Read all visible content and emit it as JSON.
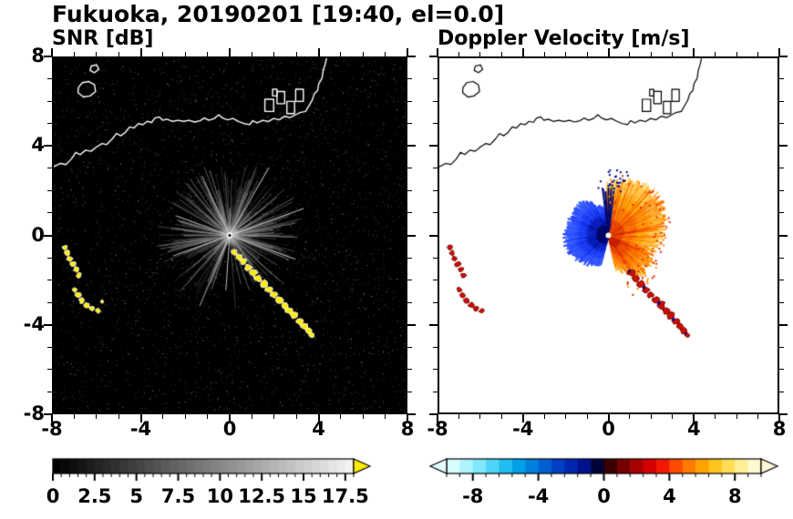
{
  "figure": {
    "title": "Fukuoka, 20190201 [19:40, el=0.0]"
  },
  "panels": [
    {
      "title": "SNR [dB]"
    },
    {
      "title": "Doppler Velocity [m/s]"
    }
  ],
  "axes": {
    "range": [
      -8,
      8
    ],
    "tick_values": [
      -8,
      -4,
      0,
      4,
      8
    ],
    "x_tick_labels": [
      "-8",
      "-4",
      "0",
      "4",
      "8"
    ],
    "y_tick_values": [
      8,
      4,
      0,
      -4,
      -8
    ],
    "y_tick_labels": [
      "8",
      "4",
      "0",
      "-4",
      "-8"
    ],
    "minor_step": 1
  },
  "colorbars": {
    "snr": {
      "labels": [
        "0",
        "2.5",
        "5",
        "7.5",
        "10",
        "12.5",
        "15",
        "17.5"
      ],
      "values": [
        0,
        2.5,
        5,
        7.5,
        10,
        12.5,
        15,
        17.5
      ],
      "range": [
        0,
        18
      ],
      "cells": 36,
      "minor_step": 0.5,
      "over_color": "#ffec00"
    },
    "vel": {
      "labels": [
        "-8",
        "-4",
        "0",
        "4",
        "8"
      ],
      "values": [
        -8,
        -4,
        0,
        4,
        8
      ],
      "range": [
        -9.6,
        9.6
      ],
      "minor_step": 0.8,
      "under_color": "#e2feff",
      "over_color": "#fffad8",
      "palette": [
        "#d8fdff",
        "#aef4ff",
        "#7fe8ff",
        "#4fd4f8",
        "#22bdf0",
        "#00a1e8",
        "#0080dd",
        "#005fd0",
        "#0040c4",
        "#0026b0",
        "#001190",
        "#000538",
        "#3a0000",
        "#750000",
        "#a80000",
        "#d40000",
        "#f01800",
        "#ff4a00",
        "#ff7a00",
        "#ffa200",
        "#ffc51e",
        "#ffdd55",
        "#ffef96",
        "#fff9cf"
      ]
    }
  },
  "chart_data": [
    {
      "type": "heatmap",
      "title": "SNR [dB]",
      "units": "dB",
      "xlim": [
        -8,
        8
      ],
      "ylim": [
        -8,
        8
      ],
      "xticks": [
        -8,
        -4,
        0,
        4,
        8
      ],
      "yticks": [
        -8,
        -4,
        0,
        4,
        8
      ],
      "background": "#000000",
      "colorbar": {
        "range": [
          0,
          18
        ],
        "label_values": [
          0,
          2.5,
          5,
          7.5,
          10,
          12.5,
          15,
          17.5
        ],
        "colormap": "black-to-white grayscale",
        "over_color": "#ffec00",
        "over_meaning": "SNR > 17.5 dB (strong clutter)"
      },
      "radar_site": [
        0,
        0
      ],
      "beam_field": {
        "description": "gray radial noise and clutter streaks radiating from the radar at the origin",
        "max_radius_km": 3.4,
        "gap_sector_deg": [
          252,
          288
        ]
      },
      "bright_rays_deg": [
        20,
        60,
        115,
        160,
        200,
        247,
        266,
        340
      ],
      "coastline": {
        "main": [
          [
            -8,
            3.1
          ],
          [
            -7.7,
            3.25
          ],
          [
            -7.45,
            3.2
          ],
          [
            -7.2,
            3.45
          ],
          [
            -7.0,
            3.75
          ],
          [
            -6.8,
            3.65
          ],
          [
            -6.55,
            3.85
          ],
          [
            -6.3,
            3.8
          ],
          [
            -6.05,
            4.0
          ],
          [
            -5.8,
            4.15
          ],
          [
            -5.6,
            4.1
          ],
          [
            -5.35,
            4.35
          ],
          [
            -5.15,
            4.6
          ],
          [
            -4.95,
            4.5
          ],
          [
            -4.75,
            4.65
          ],
          [
            -4.55,
            4.9
          ],
          [
            -4.35,
            4.85
          ],
          [
            -4.15,
            5.05
          ],
          [
            -3.95,
            5.0
          ],
          [
            -3.75,
            5.15
          ],
          [
            -3.55,
            5.1
          ],
          [
            -3.4,
            5.3
          ],
          [
            -3.2,
            5.35
          ],
          [
            -3.05,
            5.2
          ],
          [
            -2.85,
            5.25
          ],
          [
            -2.6,
            5.15
          ],
          [
            -2.35,
            5.2
          ],
          [
            -2.1,
            5.15
          ],
          [
            -1.85,
            5.2
          ],
          [
            -1.6,
            5.12
          ],
          [
            -1.35,
            5.18
          ],
          [
            -1.15,
            5.3
          ],
          [
            -0.95,
            5.2
          ],
          [
            -0.7,
            5.28
          ],
          [
            -0.5,
            5.45
          ],
          [
            -0.32,
            5.3
          ],
          [
            -0.1,
            5.22
          ],
          [
            0.15,
            5.28
          ],
          [
            0.4,
            5.15
          ],
          [
            0.65,
            5.05
          ],
          [
            0.9,
            5.0
          ],
          [
            1.05,
            5.18
          ],
          [
            1.25,
            5.08
          ],
          [
            1.5,
            5.2
          ],
          [
            1.75,
            5.14
          ],
          [
            2.0,
            5.28
          ],
          [
            2.25,
            5.22
          ],
          [
            2.5,
            5.38
          ],
          [
            2.75,
            5.32
          ],
          [
            3.0,
            5.45
          ],
          [
            3.2,
            5.55
          ],
          [
            3.45,
            5.6
          ],
          [
            3.6,
            5.85
          ],
          [
            3.75,
            6.1
          ],
          [
            3.85,
            6.4
          ],
          [
            4.0,
            6.55
          ],
          [
            4.05,
            6.85
          ],
          [
            4.2,
            7.1
          ],
          [
            4.25,
            7.45
          ],
          [
            4.35,
            7.75
          ],
          [
            4.4,
            8.0
          ]
        ],
        "islands": [
          [
            [
              -6.9,
              6.45
            ],
            [
              -6.65,
              6.25
            ],
            [
              -6.35,
              6.3
            ],
            [
              -6.1,
              6.5
            ],
            [
              -6.15,
              6.8
            ],
            [
              -6.4,
              6.95
            ],
            [
              -6.7,
              6.9
            ],
            [
              -6.88,
              6.68
            ]
          ],
          [
            [
              -6.35,
              7.45
            ],
            [
              -6.15,
              7.35
            ],
            [
              -5.95,
              7.5
            ],
            [
              -6.05,
              7.7
            ],
            [
              -6.3,
              7.65
            ]
          ]
        ],
        "port_rects": [
          [
            1.6,
            5.6,
            2.0,
            6.15
          ],
          [
            2.15,
            5.95,
            2.5,
            6.5
          ],
          [
            2.6,
            5.5,
            2.95,
            6.05
          ],
          [
            3.0,
            6.05,
            3.35,
            6.6
          ],
          [
            1.95,
            6.3,
            2.15,
            6.6
          ]
        ]
      },
      "clutter_west": [
        [
          -7.5,
          -0.55,
          0.12
        ],
        [
          -7.4,
          -0.8,
          0.13
        ],
        [
          -7.28,
          -1.05,
          0.13
        ],
        [
          -7.13,
          -1.3,
          0.13
        ],
        [
          -6.98,
          -1.55,
          0.12
        ],
        [
          -6.86,
          -1.8,
          0.12
        ],
        [
          -7.05,
          -2.45,
          0.12
        ],
        [
          -6.9,
          -2.7,
          0.13
        ],
        [
          -6.72,
          -2.95,
          0.13
        ],
        [
          -6.5,
          -3.15,
          0.13
        ],
        [
          -6.25,
          -3.3,
          0.12
        ],
        [
          -6.0,
          -3.4,
          0.11
        ],
        [
          -5.8,
          -3.0,
          0.08
        ]
      ],
      "clutter_band": [
        [
          0.2,
          -0.75,
          0.14
        ],
        [
          0.42,
          -0.98,
          0.15
        ],
        [
          0.62,
          -1.2,
          0.16
        ],
        [
          0.85,
          -1.45,
          0.17
        ],
        [
          1.08,
          -1.7,
          0.16
        ],
        [
          1.3,
          -1.95,
          0.17
        ],
        [
          1.55,
          -2.2,
          0.18
        ],
        [
          1.78,
          -2.45,
          0.17
        ],
        [
          2.0,
          -2.68,
          0.16
        ],
        [
          2.25,
          -2.92,
          0.17
        ],
        [
          2.5,
          -3.15,
          0.18
        ],
        [
          2.72,
          -3.4,
          0.17
        ],
        [
          2.95,
          -3.62,
          0.18
        ],
        [
          3.18,
          -3.88,
          0.17
        ],
        [
          3.4,
          -4.1,
          0.17
        ],
        [
          3.58,
          -4.32,
          0.15
        ],
        [
          3.72,
          -4.5,
          0.12
        ]
      ]
    },
    {
      "type": "heatmap",
      "title": "Doppler Velocity [m/s]",
      "units": "m/s",
      "xlim": [
        -8,
        8
      ],
      "ylim": [
        -8,
        8
      ],
      "xticks": [
        -8,
        -4,
        0,
        4,
        8
      ],
      "yticks": [
        -8,
        -4,
        0,
        4,
        8
      ],
      "background": "#ffffff",
      "colorbar": {
        "range": [
          -9.6,
          9.6
        ],
        "label_values": [
          -8,
          -4,
          0,
          4,
          8
        ],
        "colormap": "cyan-blue-black-red-orange-yellow diverging"
      },
      "echo": {
        "center": [
          0,
          0
        ],
        "receding_sector": {
          "angle_deg": [
            -78,
            93
          ],
          "max_radius_km": 2.9,
          "velocity_sign": "positive (away from radar)",
          "colors": [
            "#b81800",
            "#ff6a00",
            "#ff9600",
            "#ffcc55"
          ]
        },
        "approaching_sector": {
          "angle_deg": [
            99,
            256
          ],
          "max_radius_km": 2.1,
          "velocity_sign": "negative (toward radar)",
          "colors": [
            "#000a8c",
            "#0f2cd8",
            "#2446ff"
          ]
        },
        "no_data_sector_deg": [
          256,
          288
        ]
      },
      "clutter_west": [
        [
          -7.5,
          -0.55,
          0.12
        ],
        [
          -7.4,
          -0.8,
          0.13
        ],
        [
          -7.28,
          -1.05,
          0.13
        ],
        [
          -7.13,
          -1.3,
          0.13
        ],
        [
          -6.98,
          -1.55,
          0.12
        ],
        [
          -6.86,
          -1.8,
          0.12
        ],
        [
          -7.05,
          -2.45,
          0.12
        ],
        [
          -6.9,
          -2.7,
          0.13
        ],
        [
          -6.72,
          -2.95,
          0.13
        ],
        [
          -6.5,
          -3.15,
          0.13
        ],
        [
          -6.25,
          -3.3,
          0.12
        ],
        [
          -6.0,
          -3.4,
          0.11
        ]
      ],
      "clutter_band": [
        [
          1.08,
          -1.7,
          0.16
        ],
        [
          1.3,
          -1.95,
          0.17
        ],
        [
          1.55,
          -2.2,
          0.18
        ],
        [
          1.78,
          -2.45,
          0.17
        ],
        [
          2.0,
          -2.68,
          0.16
        ],
        [
          2.25,
          -2.92,
          0.17
        ],
        [
          2.5,
          -3.15,
          0.18
        ],
        [
          2.72,
          -3.4,
          0.17
        ],
        [
          2.95,
          -3.62,
          0.18
        ],
        [
          3.18,
          -3.88,
          0.17
        ],
        [
          3.4,
          -4.1,
          0.17
        ],
        [
          3.58,
          -4.32,
          0.15
        ],
        [
          3.72,
          -4.5,
          0.12
        ]
      ]
    }
  ]
}
